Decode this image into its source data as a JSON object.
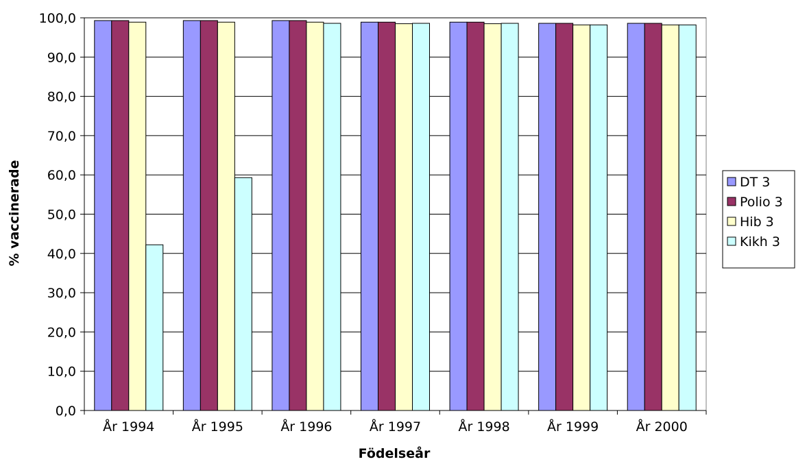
{
  "chart_data": {
    "type": "bar",
    "title": "",
    "xlabel": "Födelseår",
    "ylabel": "% vaccinerade",
    "ylim": [
      0,
      100
    ],
    "ytick_step": 10,
    "ytick_labels": [
      "0,0",
      "10,0",
      "20,0",
      "30,0",
      "40,0",
      "50,0",
      "60,0",
      "70,0",
      "80,0",
      "90,0",
      "100,0"
    ],
    "categories": [
      "År 1994",
      "År 1995",
      "År 1996",
      "År 1997",
      "År 1998",
      "År 1999",
      "År 2000"
    ],
    "series": [
      {
        "name": "DT 3",
        "color": "#9999ff",
        "values": [
          99.3,
          99.3,
          99.3,
          98.9,
          98.9,
          98.6,
          98.6
        ]
      },
      {
        "name": "Polio 3",
        "color": "#993366",
        "values": [
          99.3,
          99.3,
          99.3,
          98.9,
          98.9,
          98.6,
          98.6
        ]
      },
      {
        "name": "Hib 3",
        "color": "#ffffcc",
        "values": [
          98.9,
          98.9,
          98.9,
          98.5,
          98.5,
          98.2,
          98.2
        ]
      },
      {
        "name": "Kikh 3",
        "color": "#ccffff",
        "values": [
          42.2,
          59.3,
          98.6,
          98.6,
          98.6,
          98.2,
          98.2
        ]
      }
    ],
    "grid": true,
    "legend_position": "right"
  }
}
